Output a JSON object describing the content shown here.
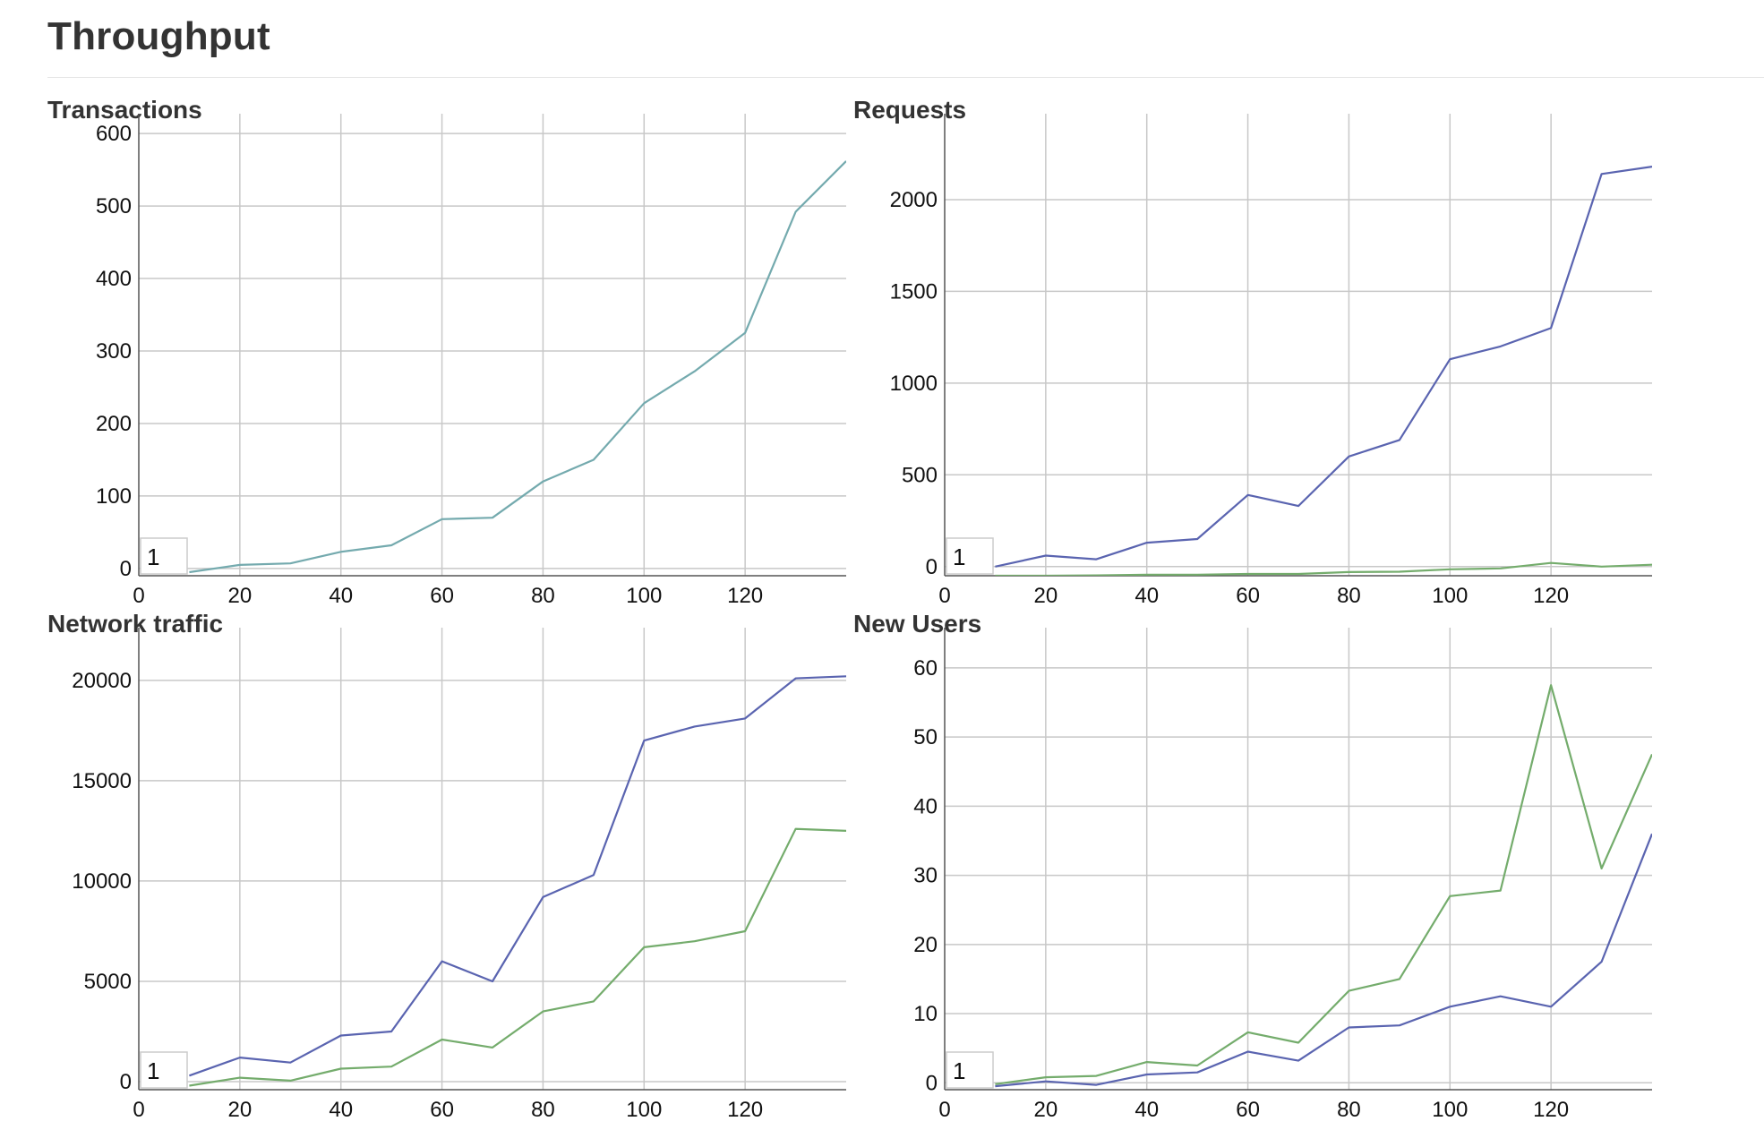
{
  "page": {
    "title": "Throughput"
  },
  "colors": {
    "grid": "#c8c8c8",
    "axis": "#555555",
    "teal": "#74aaae",
    "blue": "#5a64b0",
    "green": "#74ac6c",
    "range_box_border": "#cccccc"
  },
  "chart_data": [
    {
      "id": "transactions",
      "type": "line",
      "title": "Transactions",
      "xlabel": "",
      "ylabel": "",
      "xlim": [
        0,
        140
      ],
      "ylim": [
        -10,
        610
      ],
      "x_ticks": [
        0,
        20,
        40,
        60,
        80,
        100,
        120
      ],
      "y_ticks": [
        0,
        100,
        200,
        300,
        400,
        500,
        600
      ],
      "grid": true,
      "legend": "none",
      "range_box_label": "1",
      "x": [
        10,
        20,
        30,
        40,
        50,
        60,
        70,
        80,
        90,
        100,
        110,
        120,
        130,
        140
      ],
      "series": [
        {
          "color": "#74aaae",
          "values": [
            -5,
            5,
            7,
            23,
            32,
            68,
            70,
            120,
            150,
            228,
            272,
            325,
            492,
            562
          ]
        }
      ]
    },
    {
      "id": "requests",
      "type": "line",
      "title": "Requests",
      "xlabel": "",
      "ylabel": "",
      "xlim": [
        0,
        140
      ],
      "ylim": [
        -50,
        2400
      ],
      "x_ticks": [
        0,
        20,
        40,
        60,
        80,
        100,
        120
      ],
      "y_ticks": [
        0,
        500,
        1000,
        1500,
        2000
      ],
      "grid": true,
      "legend": "none",
      "range_box_label": "1",
      "x": [
        10,
        20,
        30,
        40,
        50,
        60,
        70,
        80,
        90,
        100,
        110,
        120,
        130,
        140
      ],
      "series": [
        {
          "color": "#5a64b0",
          "values": [
            0,
            60,
            40,
            130,
            150,
            390,
            330,
            600,
            690,
            1130,
            1200,
            1300,
            2140,
            2180
          ]
        },
        {
          "color": "#74ac6c",
          "values": [
            -50,
            -50,
            -48,
            -44,
            -44,
            -40,
            -40,
            -30,
            -28,
            -15,
            -10,
            20,
            0,
            10
          ]
        }
      ]
    },
    {
      "id": "network-traffic",
      "type": "line",
      "title": "Network traffic",
      "xlabel": "",
      "ylabel": "",
      "xlim": [
        0,
        140
      ],
      "ylim": [
        -400,
        22000
      ],
      "x_ticks": [
        0,
        20,
        40,
        60,
        80,
        100,
        120
      ],
      "y_ticks": [
        0,
        5000,
        10000,
        15000,
        20000
      ],
      "grid": true,
      "legend": "none",
      "range_box_label": "1",
      "x": [
        10,
        20,
        30,
        40,
        50,
        60,
        70,
        80,
        90,
        100,
        110,
        120,
        130,
        140
      ],
      "series": [
        {
          "color": "#5a64b0",
          "values": [
            300,
            1200,
            950,
            2300,
            2500,
            6000,
            5000,
            9200,
            10300,
            17000,
            17700,
            18100,
            20100,
            20200
          ]
        },
        {
          "color": "#74ac6c",
          "values": [
            -200,
            200,
            50,
            650,
            750,
            2100,
            1700,
            3500,
            4000,
            6700,
            7000,
            7500,
            12600,
            12500
          ]
        }
      ]
    },
    {
      "id": "new-users",
      "type": "line",
      "title": "New Users",
      "xlabel": "",
      "ylabel": "",
      "xlim": [
        0,
        140
      ],
      "ylim": [
        -1,
        64
      ],
      "x_ticks": [
        0,
        20,
        40,
        60,
        80,
        100,
        120
      ],
      "y_ticks": [
        0,
        10,
        20,
        30,
        40,
        50,
        60
      ],
      "grid": true,
      "legend": "none",
      "range_box_label": "1",
      "x": [
        10,
        20,
        30,
        40,
        50,
        60,
        70,
        80,
        90,
        100,
        110,
        120,
        130,
        140
      ],
      "series": [
        {
          "color": "#5a64b0",
          "values": [
            -0.5,
            0.2,
            -0.3,
            1.2,
            1.5,
            4.5,
            3.2,
            8.0,
            8.3,
            11.0,
            12.5,
            11.0,
            17.5,
            36.0
          ]
        },
        {
          "color": "#74ac6c",
          "values": [
            -0.2,
            0.8,
            1.0,
            3.0,
            2.5,
            7.3,
            5.8,
            13.3,
            15.0,
            27.0,
            27.8,
            57.5,
            31.0,
            47.5
          ]
        }
      ]
    }
  ]
}
